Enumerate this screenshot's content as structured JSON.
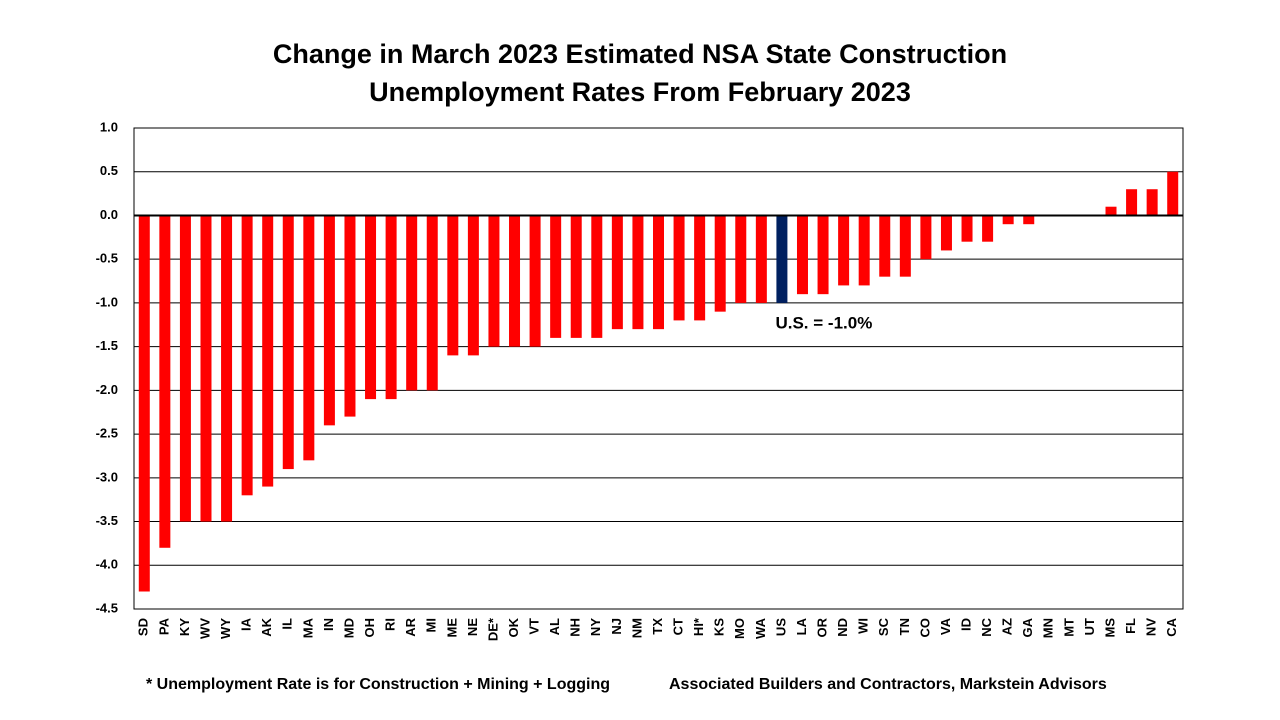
{
  "chart_data": {
    "type": "bar",
    "title": [
      "Change in March 2023 Estimated NSA State Construction",
      "Unemployment Rates From February 2023"
    ],
    "categories": [
      "SD",
      "PA",
      "KY",
      "WV",
      "WY",
      "IA",
      "AK",
      "IL",
      "MA",
      "IN",
      "MD",
      "OH",
      "RI",
      "AR",
      "MI",
      "ME",
      "NE",
      "DE*",
      "OK",
      "VT",
      "AL",
      "NH",
      "NY",
      "NJ",
      "NM",
      "TX",
      "CT",
      "HI*",
      "KS",
      "MO",
      "WA",
      "US",
      "LA",
      "OR",
      "ND",
      "WI",
      "SC",
      "TN",
      "CO",
      "VA",
      "ID",
      "NC",
      "AZ",
      "GA",
      "MN",
      "MT",
      "UT",
      "MS",
      "FL",
      "NV",
      "CA"
    ],
    "values": [
      -4.3,
      -3.8,
      -3.5,
      -3.5,
      -3.5,
      -3.2,
      -3.1,
      -2.9,
      -2.8,
      -2.4,
      -2.3,
      -2.1,
      -2.1,
      -2.0,
      -2.0,
      -1.6,
      -1.6,
      -1.5,
      -1.5,
      -1.5,
      -1.4,
      -1.4,
      -1.4,
      -1.3,
      -1.3,
      -1.3,
      -1.2,
      -1.2,
      -1.1,
      -1.0,
      -1.0,
      -1.0,
      -0.9,
      -0.9,
      -0.8,
      -0.8,
      -0.7,
      -0.7,
      -0.5,
      -0.4,
      -0.3,
      -0.3,
      -0.1,
      -0.1,
      0,
      0,
      0,
      0.1,
      0.3,
      0.3,
      0.5
    ],
    "color": "#ff0000",
    "highlight": {
      "category": "US",
      "color": "#002060"
    },
    "ylim": [
      -4.5,
      1.0
    ],
    "yticks": [
      {
        "value": -4.5,
        "label": "-4.5"
      },
      {
        "value": -4,
        "label": "-4.0"
      },
      -3.5,
      {
        "value": -3,
        "label": "-3.0"
      },
      -2.5,
      {
        "value": -2,
        "label": "-2.0"
      },
      -1.5,
      {
        "value": -1,
        "label": "-1.0"
      },
      -0.5,
      {
        "value": 0,
        "label": "0.0"
      },
      0.5,
      {
        "value": 1,
        "label": "1.0"
      }
    ],
    "grid": true,
    "annotation": "U.S. = -1.0%",
    "footnotes": [
      "* Unemployment Rate is for Construction + Mining + Logging",
      "Associated Builders and Contractors, Markstein Advisors"
    ]
  }
}
